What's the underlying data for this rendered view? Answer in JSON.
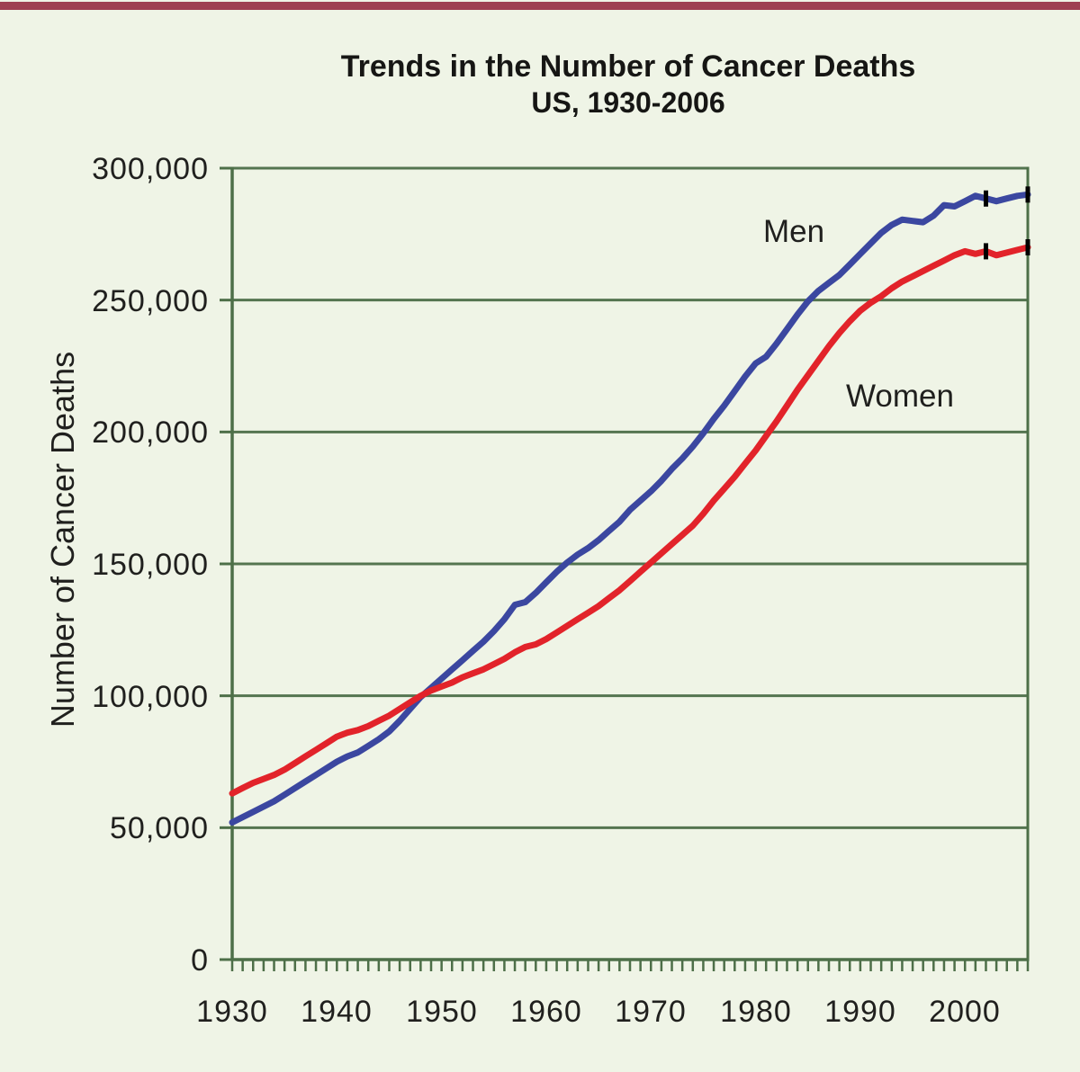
{
  "page": {
    "top_bar_color": "#9e4151",
    "background_color": "#eff4e6"
  },
  "title": {
    "line1": "Trends in the Number of Cancer Deaths",
    "line2": "US, 1930-2006"
  },
  "y_axis": {
    "label": "Number of Cancer Deaths",
    "ticks": [
      "300,000",
      "250,000",
      "200,000",
      "150,000",
      "100,000",
      "50,000",
      "0"
    ],
    "min": 0,
    "max": 300000,
    "step": 50000
  },
  "x_axis": {
    "ticks": [
      "1930",
      "1940",
      "1950",
      "1960",
      "1970",
      "1980",
      "1990",
      "2000"
    ],
    "start_year": 1930,
    "end_year": 2006,
    "minor_tick_interval": 1
  },
  "series_labels": {
    "men": "Men",
    "women": "Women"
  },
  "colors": {
    "men_line": "#3b47a0",
    "women_line": "#e2232a",
    "axis_green": "#4d6f48",
    "grid_green": "#547550",
    "text": "#20201e",
    "marker_black": "#000000",
    "top_bar": "#9e4151",
    "background": "#eff4e6"
  },
  "chart_data": {
    "type": "line",
    "title": "Trends in the Number of Cancer Deaths US, 1930-2006",
    "xlabel": "",
    "ylabel": "Number of Cancer Deaths",
    "x_range": [
      1930,
      2006
    ],
    "ylim": [
      0,
      300000
    ],
    "grid": "horizontal",
    "legend_position": "inline-annotations",
    "x": [
      1930,
      1931,
      1932,
      1933,
      1934,
      1935,
      1936,
      1937,
      1938,
      1939,
      1940,
      1941,
      1942,
      1943,
      1944,
      1945,
      1946,
      1947,
      1948,
      1949,
      1950,
      1951,
      1952,
      1953,
      1954,
      1955,
      1956,
      1957,
      1958,
      1959,
      1960,
      1961,
      1962,
      1963,
      1964,
      1965,
      1966,
      1967,
      1968,
      1969,
      1970,
      1971,
      1972,
      1973,
      1974,
      1975,
      1976,
      1977,
      1978,
      1979,
      1980,
      1981,
      1982,
      1983,
      1984,
      1985,
      1986,
      1987,
      1988,
      1989,
      1990,
      1991,
      1992,
      1993,
      1994,
      1995,
      1996,
      1997,
      1998,
      1999,
      2000,
      2001,
      2002,
      2003,
      2004,
      2005,
      2006
    ],
    "series": [
      {
        "name": "Men",
        "color": "#3b47a0",
        "values": [
          52000,
          54000,
          56000,
          58000,
          60000,
          62500,
          65000,
          67500,
          70000,
          72500,
          75000,
          77000,
          78500,
          81000,
          83500,
          86500,
          90500,
          95000,
          99500,
          103000,
          106500,
          110000,
          113500,
          117000,
          120500,
          124500,
          129000,
          134500,
          135500,
          139000,
          143000,
          147000,
          150500,
          153500,
          156000,
          159000,
          162500,
          166000,
          170500,
          174000,
          177500,
          181500,
          186000,
          190000,
          194500,
          199500,
          205000,
          210000,
          215500,
          221000,
          226000,
          228500,
          233500,
          239000,
          244500,
          249500,
          253500,
          256500,
          259500,
          263500,
          267500,
          271500,
          275500,
          278500,
          280500,
          280000,
          279500,
          282000,
          286000,
          285500,
          287500,
          289500,
          288500,
          287500,
          288500,
          289500,
          290000
        ]
      },
      {
        "name": "Women",
        "color": "#e2232a",
        "values": [
          63000,
          65000,
          67000,
          68500,
          70000,
          72000,
          74500,
          77000,
          79500,
          82000,
          84500,
          86000,
          87000,
          88500,
          90500,
          92500,
          95000,
          97500,
          100000,
          102000,
          103500,
          105000,
          107000,
          108500,
          110000,
          112000,
          114000,
          116500,
          118500,
          119500,
          121500,
          124000,
          126500,
          129000,
          131500,
          134000,
          137000,
          140000,
          143500,
          147000,
          150500,
          154000,
          157500,
          161000,
          164500,
          169000,
          174000,
          178500,
          183000,
          188000,
          193000,
          198500,
          204000,
          210000,
          216000,
          221500,
          227000,
          232500,
          237500,
          242000,
          246000,
          249000,
          251500,
          254500,
          257000,
          259000,
          261000,
          263000,
          265000,
          267000,
          268500,
          267500,
          268500,
          267000,
          268000,
          269000,
          270000
        ]
      }
    ],
    "annotations": [
      {
        "text": "Men",
        "x": 1983.6,
        "y": 275000
      },
      {
        "text": "Women",
        "x": 1993.8,
        "y": 213000
      }
    ],
    "line_break_markers": [
      {
        "series": "Men",
        "year": 2002
      },
      {
        "series": "Women",
        "year": 2002
      },
      {
        "series": "Men",
        "year": 2006
      },
      {
        "series": "Women",
        "year": 2006
      }
    ]
  }
}
